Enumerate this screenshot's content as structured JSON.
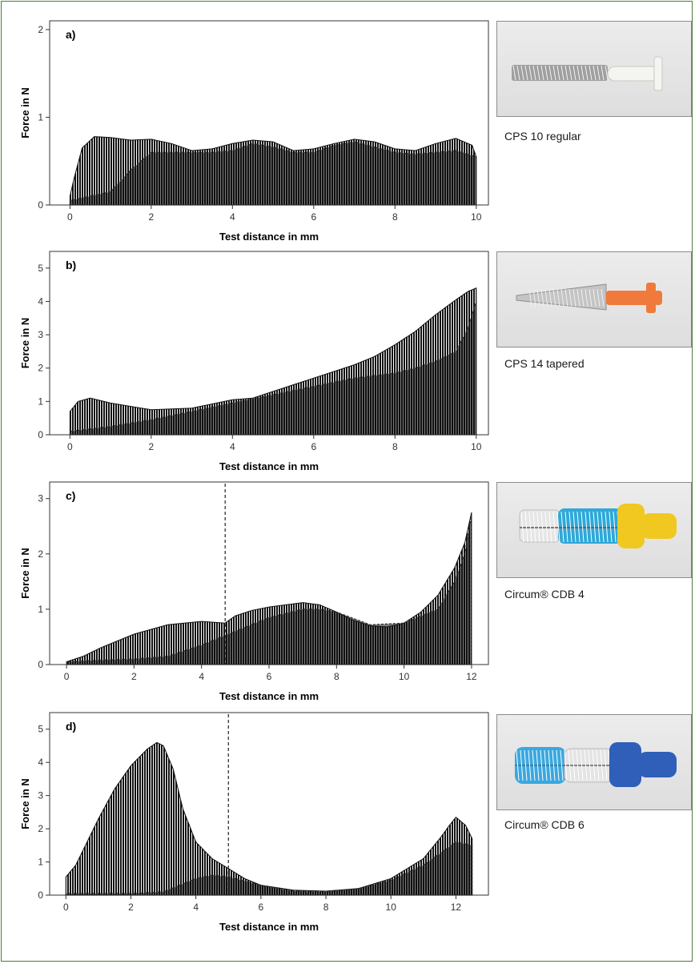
{
  "chart_data": [
    {
      "type": "area",
      "panel": "a)",
      "xlabel": "Test distance in mm",
      "ylabel": "Force in N",
      "xlim": [
        -0.5,
        10.3
      ],
      "ylim": [
        0,
        2.1
      ],
      "xticks": [
        0,
        2,
        4,
        6,
        8,
        10
      ],
      "yticks": [
        0,
        1,
        2
      ],
      "grid": false,
      "series": [
        {
          "x": [
            0,
            0.1,
            0.3,
            0.6,
            1,
            1.5,
            2,
            2.5,
            3,
            3.5,
            4,
            4.5,
            5,
            5.5,
            6,
            6.5,
            7,
            7.5,
            8,
            8.5,
            9,
            9.5,
            9.9,
            10
          ],
          "values": [
            0.1,
            0.3,
            0.65,
            0.78,
            0.77,
            0.74,
            0.75,
            0.7,
            0.62,
            0.64,
            0.7,
            0.74,
            0.72,
            0.62,
            0.64,
            0.7,
            0.75,
            0.72,
            0.64,
            0.62,
            0.7,
            0.76,
            0.68,
            0.55
          ]
        },
        {
          "x": [
            0,
            0.5,
            1,
            1.5,
            2,
            2.5,
            3,
            3.5,
            4,
            4.5,
            5,
            5.5,
            6,
            6.5,
            7,
            7.5,
            8,
            8.5,
            9,
            9.5,
            10
          ],
          "values": [
            0.05,
            0.1,
            0.15,
            0.4,
            0.6,
            0.6,
            0.6,
            0.6,
            0.62,
            0.7,
            0.66,
            0.6,
            0.6,
            0.68,
            0.72,
            0.66,
            0.6,
            0.58,
            0.6,
            0.62,
            0.55
          ]
        }
      ]
    },
    {
      "type": "area",
      "panel": "b)",
      "xlabel": "Test distance in mm",
      "ylabel": "Force in N",
      "xlim": [
        -0.5,
        10.3
      ],
      "ylim": [
        0,
        5.5
      ],
      "xticks": [
        0,
        2,
        4,
        6,
        8,
        10
      ],
      "yticks": [
        0,
        1,
        2,
        3,
        4,
        5
      ],
      "grid": false,
      "series": [
        {
          "x": [
            0,
            0.2,
            0.5,
            1,
            2,
            3,
            4,
            4.5,
            5,
            6,
            7,
            7.5,
            8,
            8.5,
            9,
            9.5,
            9.8,
            10
          ],
          "values": [
            0.7,
            1.0,
            1.1,
            0.95,
            0.75,
            0.8,
            1.05,
            1.1,
            1.3,
            1.7,
            2.1,
            2.35,
            2.7,
            3.1,
            3.6,
            4.05,
            4.3,
            4.4
          ]
        },
        {
          "x": [
            0,
            1,
            2,
            3,
            4,
            5,
            6,
            7,
            8,
            8.5,
            9,
            9.5,
            9.8,
            10
          ],
          "values": [
            0.1,
            0.25,
            0.45,
            0.7,
            0.95,
            1.2,
            1.45,
            1.7,
            1.85,
            2.0,
            2.2,
            2.5,
            3.2,
            4.0
          ]
        }
      ]
    },
    {
      "type": "area",
      "panel": "c)",
      "xlabel": "Test distance in mm",
      "ylabel": "Force in N",
      "xlim": [
        -0.5,
        12.5
      ],
      "ylim": [
        0,
        3.3
      ],
      "xticks": [
        0,
        2,
        4,
        6,
        8,
        10,
        12
      ],
      "yticks": [
        0,
        1,
        2,
        3
      ],
      "grid": false,
      "marker_line_x": 4.7,
      "series": [
        {
          "x": [
            0,
            0.5,
            1,
            2,
            3,
            4,
            4.7,
            5,
            5.5,
            6,
            6.5,
            7,
            7.5,
            8,
            8.5,
            9,
            9.5,
            10,
            10.5,
            11,
            11.5,
            11.8,
            12
          ],
          "values": [
            0.05,
            0.15,
            0.3,
            0.55,
            0.72,
            0.78,
            0.75,
            0.88,
            0.98,
            1.04,
            1.08,
            1.12,
            1.08,
            0.95,
            0.8,
            0.7,
            0.68,
            0.75,
            0.95,
            1.25,
            1.75,
            2.2,
            2.75
          ]
        },
        {
          "x": [
            0,
            1,
            2,
            3,
            4,
            5,
            6,
            7,
            7.5,
            8,
            9,
            10,
            11,
            11.5,
            11.8,
            12
          ],
          "values": [
            0.05,
            0.08,
            0.1,
            0.15,
            0.35,
            0.6,
            0.85,
            1.0,
            1.0,
            0.95,
            0.72,
            0.75,
            1.0,
            1.5,
            2.0,
            2.7
          ]
        }
      ]
    },
    {
      "type": "area",
      "panel": "d)",
      "xlabel": "Test distance in mm",
      "ylabel": "Force in N",
      "xlim": [
        -0.5,
        13
      ],
      "ylim": [
        0,
        5.5
      ],
      "xticks": [
        0,
        2,
        4,
        6,
        8,
        10,
        12
      ],
      "yticks": [
        0,
        1,
        2,
        3,
        4,
        5
      ],
      "grid": false,
      "marker_line_x": 5,
      "series": [
        {
          "x": [
            0,
            0.3,
            0.6,
            1,
            1.5,
            2,
            2.5,
            2.8,
            3,
            3.3,
            3.6,
            4,
            4.5,
            5,
            5.5,
            6,
            7,
            8,
            9,
            10,
            11,
            11.5,
            11.8,
            12,
            12.3,
            12.5
          ],
          "values": [
            0.55,
            0.9,
            1.5,
            2.3,
            3.2,
            3.9,
            4.4,
            4.6,
            4.5,
            3.8,
            2.6,
            1.6,
            1.1,
            0.8,
            0.5,
            0.3,
            0.15,
            0.12,
            0.2,
            0.5,
            1.1,
            1.7,
            2.1,
            2.35,
            2.1,
            1.7
          ]
        },
        {
          "x": [
            0,
            1,
            2,
            3,
            4,
            4.5,
            5,
            6,
            7,
            8,
            9,
            10,
            11,
            12,
            12.5
          ],
          "values": [
            0.05,
            0.05,
            0.05,
            0.1,
            0.5,
            0.6,
            0.55,
            0.3,
            0.12,
            0.1,
            0.2,
            0.45,
            0.9,
            1.6,
            1.5
          ]
        }
      ]
    }
  ],
  "images": [
    {
      "caption": "CPS 10 regular",
      "handle_color": "#f3f3ef",
      "bristle_color": "#9a9a9a",
      "tip_color": "#9a9a9a"
    },
    {
      "caption": "CPS 14 tapered",
      "handle_color": "#f07a3c",
      "bristle_color": "#a5a5a5",
      "tip_color": "#a5a5a5"
    },
    {
      "caption": "Circum® CDB 4",
      "handle_color": "#f0c820",
      "bristle_color": "#2fa8d8",
      "tip_color": "#d8d8d8"
    },
    {
      "caption": "Circum® CDB 6",
      "handle_color": "#2f5fb8",
      "bristle_color": "#d8d8d8",
      "tip_color": "#3aa8e0"
    }
  ]
}
